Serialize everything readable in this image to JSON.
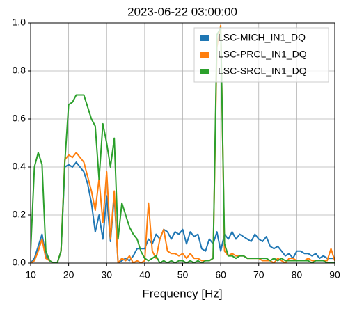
{
  "chart_data": {
    "type": "line",
    "title": "2023-06-22 03:00:00",
    "xlabel": "Frequency [Hz]",
    "x": [
      10,
      11,
      12,
      13,
      14,
      15,
      16,
      17,
      18,
      19,
      20,
      21,
      22,
      23,
      24,
      25,
      26,
      27,
      28,
      29,
      30,
      31,
      32,
      33,
      34,
      35,
      36,
      37,
      38,
      39,
      40,
      41,
      42,
      43,
      44,
      45,
      46,
      47,
      48,
      49,
      50,
      51,
      52,
      53,
      54,
      55,
      56,
      57,
      58,
      59,
      60,
      61,
      62,
      63,
      64,
      65,
      66,
      67,
      68,
      69,
      70,
      71,
      72,
      73,
      74,
      75,
      76,
      77,
      78,
      79,
      80,
      81,
      82,
      83,
      84,
      85,
      86,
      87,
      88,
      89,
      90
    ],
    "series": [
      {
        "name": "LSC-MICH_IN1_DQ",
        "color": "#1f77b4",
        "values": [
          0.0,
          0.02,
          0.07,
          0.12,
          0.03,
          0.01,
          0.0,
          0.0,
          0.05,
          0.4,
          0.41,
          0.4,
          0.42,
          0.4,
          0.38,
          0.33,
          0.25,
          0.13,
          0.2,
          0.1,
          0.28,
          0.09,
          0.28,
          0.0,
          0.01,
          0.02,
          0.01,
          0.03,
          0.06,
          0.06,
          0.06,
          0.1,
          0.08,
          0.12,
          0.1,
          0.14,
          0.13,
          0.1,
          0.13,
          0.12,
          0.14,
          0.08,
          0.13,
          0.11,
          0.12,
          0.06,
          0.05,
          0.1,
          0.08,
          0.13,
          0.05,
          0.12,
          0.1,
          0.13,
          0.1,
          0.12,
          0.11,
          0.1,
          0.09,
          0.12,
          0.1,
          0.09,
          0.11,
          0.07,
          0.06,
          0.07,
          0.05,
          0.03,
          0.04,
          0.02,
          0.05,
          0.05,
          0.04,
          0.04,
          0.03,
          0.04,
          0.02,
          0.03,
          0.02,
          0.02,
          0.02
        ]
      },
      {
        "name": "LSC-PRCL_IN1_DQ",
        "color": "#ff7f0e",
        "values": [
          0.0,
          0.01,
          0.05,
          0.1,
          0.02,
          0.01,
          0.0,
          0.0,
          0.05,
          0.43,
          0.45,
          0.44,
          0.46,
          0.44,
          0.42,
          0.36,
          0.3,
          0.22,
          0.35,
          0.17,
          0.38,
          0.1,
          0.3,
          0.0,
          0.02,
          0.01,
          0.03,
          0.0,
          0.01,
          0.0,
          0.01,
          0.25,
          0.05,
          0.02,
          0.1,
          0.14,
          0.05,
          0.04,
          0.04,
          0.03,
          0.04,
          0.02,
          0.04,
          0.02,
          0.02,
          0.01,
          0.01,
          0.01,
          0.02,
          0.9,
          0.99,
          0.05,
          0.03,
          0.04,
          0.03,
          0.03,
          0.03,
          0.02,
          0.02,
          0.02,
          0.02,
          0.01,
          0.01,
          0.01,
          0.0,
          0.02,
          0.01,
          0.0,
          0.02,
          0.02,
          0.01,
          0.01,
          0.01,
          0.02,
          0.01,
          0.01,
          0.01,
          0.01,
          0.01,
          0.06,
          0.01
        ]
      },
      {
        "name": "LSC-SRCL_IN1_DQ",
        "color": "#2ca02c",
        "values": [
          0.05,
          0.4,
          0.46,
          0.41,
          0.05,
          0.01,
          0.0,
          0.0,
          0.05,
          0.42,
          0.66,
          0.67,
          0.7,
          0.7,
          0.7,
          0.65,
          0.6,
          0.57,
          0.35,
          0.58,
          0.5,
          0.4,
          0.52,
          0.1,
          0.25,
          0.2,
          0.15,
          0.12,
          0.1,
          0.05,
          0.02,
          0.01,
          0.02,
          0.03,
          0.0,
          0.01,
          0.0,
          0.01,
          0.0,
          0.01,
          0.01,
          0.0,
          0.01,
          0.0,
          0.01,
          0.0,
          0.01,
          0.01,
          0.02,
          0.95,
          0.98,
          0.08,
          0.03,
          0.03,
          0.02,
          0.03,
          0.03,
          0.02,
          0.02,
          0.02,
          0.02,
          0.02,
          0.02,
          0.01,
          0.02,
          0.01,
          0.02,
          0.01,
          0.01,
          0.01,
          0.01,
          0.01,
          0.01,
          0.01,
          0.0,
          0.01,
          0.01,
          0.01,
          0.0,
          0.0,
          0.0
        ]
      }
    ],
    "xlim": [
      10,
      90
    ],
    "xticks": [
      10,
      20,
      30,
      40,
      50,
      60,
      70,
      80,
      90
    ],
    "ylim": [
      0,
      1
    ],
    "yticks": [
      {
        "value": 0,
        "label": "0.0"
      },
      0.2,
      0.4,
      0.6,
      0.8,
      {
        "value": 1,
        "label": "1.0"
      }
    ],
    "grid": true,
    "legend": "upper right"
  }
}
